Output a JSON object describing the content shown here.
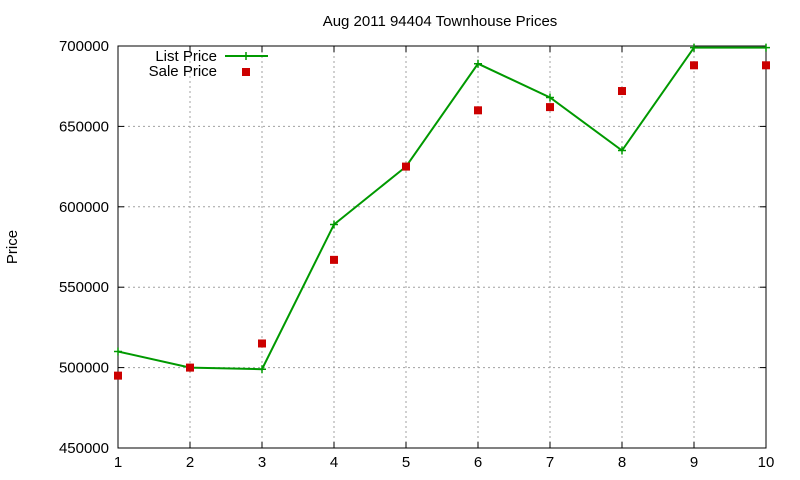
{
  "chart_data": {
    "type": "line",
    "title": "Aug 2011 94404 Townhouse Prices",
    "xlabel": "",
    "ylabel": "Price",
    "x": [
      1,
      2,
      3,
      4,
      5,
      6,
      7,
      8,
      9,
      10
    ],
    "xlim": [
      1,
      10
    ],
    "ylim": [
      450000,
      700000
    ],
    "xticks": [
      "1",
      "2",
      "3",
      "4",
      "5",
      "6",
      "7",
      "8",
      "9",
      "10"
    ],
    "yticks": [
      "450000",
      "500000",
      "550000",
      "600000",
      "650000",
      "700000"
    ],
    "grid": true,
    "legend_position": "top-left",
    "series": [
      {
        "name": "List Price",
        "style": "line-with-plus-markers",
        "color": "#009900",
        "values": [
          510000,
          500000,
          499000,
          589000,
          625000,
          689000,
          668000,
          635000,
          699000,
          699000
        ]
      },
      {
        "name": "Sale Price",
        "style": "square-markers",
        "color": "#cc0000",
        "values": [
          495000,
          500000,
          515000,
          567000,
          625000,
          660000,
          662000,
          672000,
          688000,
          688000
        ]
      }
    ]
  }
}
